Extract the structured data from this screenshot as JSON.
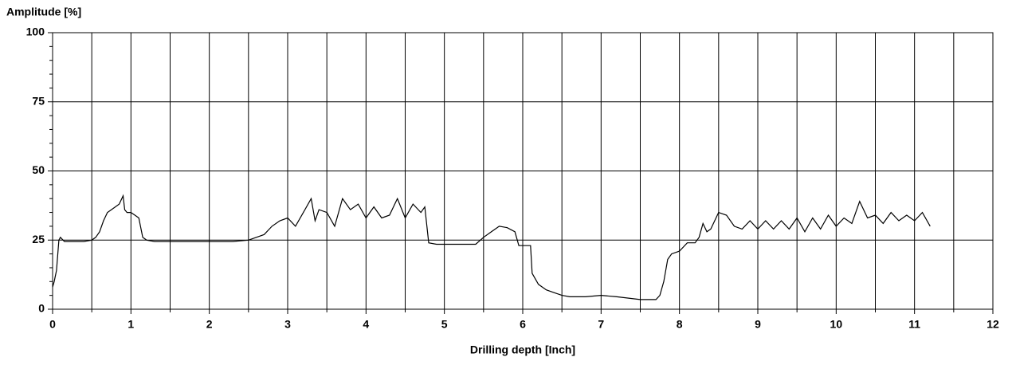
{
  "chart_data": {
    "type": "line",
    "y_label": "Amplitude [%]",
    "x_label": "Drilling depth [Inch]",
    "color": "#000000",
    "x": [
      0,
      0.02,
      0.05,
      0.08,
      0.1,
      0.15,
      0.2,
      0.3,
      0.4,
      0.5,
      0.55,
      0.6,
      0.65,
      0.7,
      0.75,
      0.8,
      0.85,
      0.9,
      0.92,
      0.95,
      1.0,
      1.05,
      1.1,
      1.15,
      1.2,
      1.3,
      1.5,
      1.7,
      1.9,
      2.1,
      2.3,
      2.5,
      2.6,
      2.7,
      2.8,
      2.9,
      3.0,
      3.1,
      3.2,
      3.3,
      3.35,
      3.4,
      3.5,
      3.6,
      3.7,
      3.8,
      3.9,
      4.0,
      4.1,
      4.2,
      4.3,
      4.4,
      4.5,
      4.6,
      4.7,
      4.75,
      4.8,
      4.9,
      5.0,
      5.2,
      5.4,
      5.5,
      5.6,
      5.7,
      5.8,
      5.9,
      5.95,
      6.1,
      6.12,
      6.2,
      6.3,
      6.4,
      6.5,
      6.6,
      6.8,
      7.0,
      7.2,
      7.5,
      7.7,
      7.75,
      7.8,
      7.85,
      7.9,
      8.0,
      8.1,
      8.2,
      8.25,
      8.3,
      8.35,
      8.4,
      8.5,
      8.6,
      8.7,
      8.8,
      8.9,
      9.0,
      9.1,
      9.2,
      9.3,
      9.4,
      9.5,
      9.6,
      9.7,
      9.8,
      9.9,
      10.0,
      10.1,
      10.2,
      10.3,
      10.4,
      10.5,
      10.6,
      10.7,
      10.8,
      10.9,
      11.0,
      11.1,
      11.2
    ],
    "values": [
      8,
      10,
      14,
      25,
      26,
      24.5,
      24.5,
      24.5,
      24.5,
      25,
      26,
      28,
      32,
      35,
      36,
      37,
      38,
      41,
      36,
      35,
      35,
      34,
      33,
      26,
      25,
      24.5,
      24.5,
      24.5,
      24.5,
      24.5,
      24.5,
      25,
      26,
      27,
      30,
      32,
      33,
      30,
      35,
      40,
      32,
      36,
      35,
      30,
      40,
      36,
      38,
      33,
      37,
      33,
      34,
      40,
      33,
      38,
      35,
      37,
      24,
      23.5,
      23.5,
      23.5,
      23.5,
      26,
      28,
      30,
      29.5,
      28,
      23,
      23,
      13,
      9,
      7,
      6,
      5,
      4.5,
      4.5,
      5,
      4.5,
      3.5,
      3.5,
      5,
      10,
      18,
      20,
      21,
      24,
      24,
      26,
      31,
      28,
      29,
      35,
      34,
      30,
      29,
      32,
      29,
      32,
      29,
      32,
      29,
      33,
      28,
      33,
      29,
      34,
      30,
      33,
      31,
      39,
      33,
      34,
      31,
      35,
      32,
      34,
      32,
      35,
      30
    ],
    "xlim": [
      0,
      12
    ],
    "xticks": [
      0,
      1,
      2,
      3,
      4,
      5,
      6,
      7,
      8,
      9,
      10,
      11,
      12
    ],
    "x_minor_ticks": [
      0.5,
      1.5,
      2.5,
      3.5,
      4.5,
      5.5,
      6.5,
      7.5,
      8.5,
      9.5,
      10.5,
      11.5
    ],
    "ylim": [
      0,
      100
    ],
    "yticks": [
      0,
      25,
      50,
      75,
      100
    ],
    "y_minor_ticks": [
      5,
      10,
      15,
      20,
      30,
      35,
      40,
      45,
      55,
      60,
      65,
      70,
      80,
      85,
      90,
      95
    ],
    "grid": true
  }
}
